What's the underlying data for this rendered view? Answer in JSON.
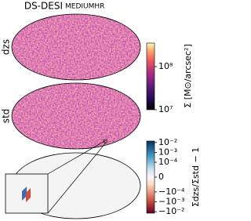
{
  "chart_data": {
    "type": "sky-maps",
    "title": "DS-DESI",
    "subtitle": "MEDIUMHR",
    "panels": [
      {
        "label": "dzs"
      },
      {
        "label": "std"
      }
    ],
    "colorbars": [
      {
        "scale": "log",
        "cmap": "magma",
        "label": "Σ [M⊙/arcsec²]",
        "ylim": [
          10000000,
          350000000
        ],
        "yticks": [
          {
            "value": 10000000,
            "label": "10⁷"
          },
          {
            "value": 100000000,
            "label": "10⁸"
          }
        ]
      },
      {
        "scale": "symlog",
        "cmap": "RdBu",
        "linthresh": 0.0001,
        "linscale": 1.5,
        "label": "Σdzs/Σstd − 1",
        "ylim": [
          -0.014,
          0.014
        ],
        "yticks": [
          {
            "value": 0.01,
            "label": "10⁻²"
          },
          {
            "value": 0.001,
            "label": "10⁻³"
          },
          {
            "value": 0.0001,
            "label": "10⁻⁴"
          },
          0,
          {
            "value": -0.0001,
            "label": "−10⁻⁴"
          },
          {
            "value": -0.001,
            "label": "−10⁻³"
          },
          {
            "value": -0.01,
            "label": "−10⁻²"
          }
        ]
      }
    ]
  }
}
